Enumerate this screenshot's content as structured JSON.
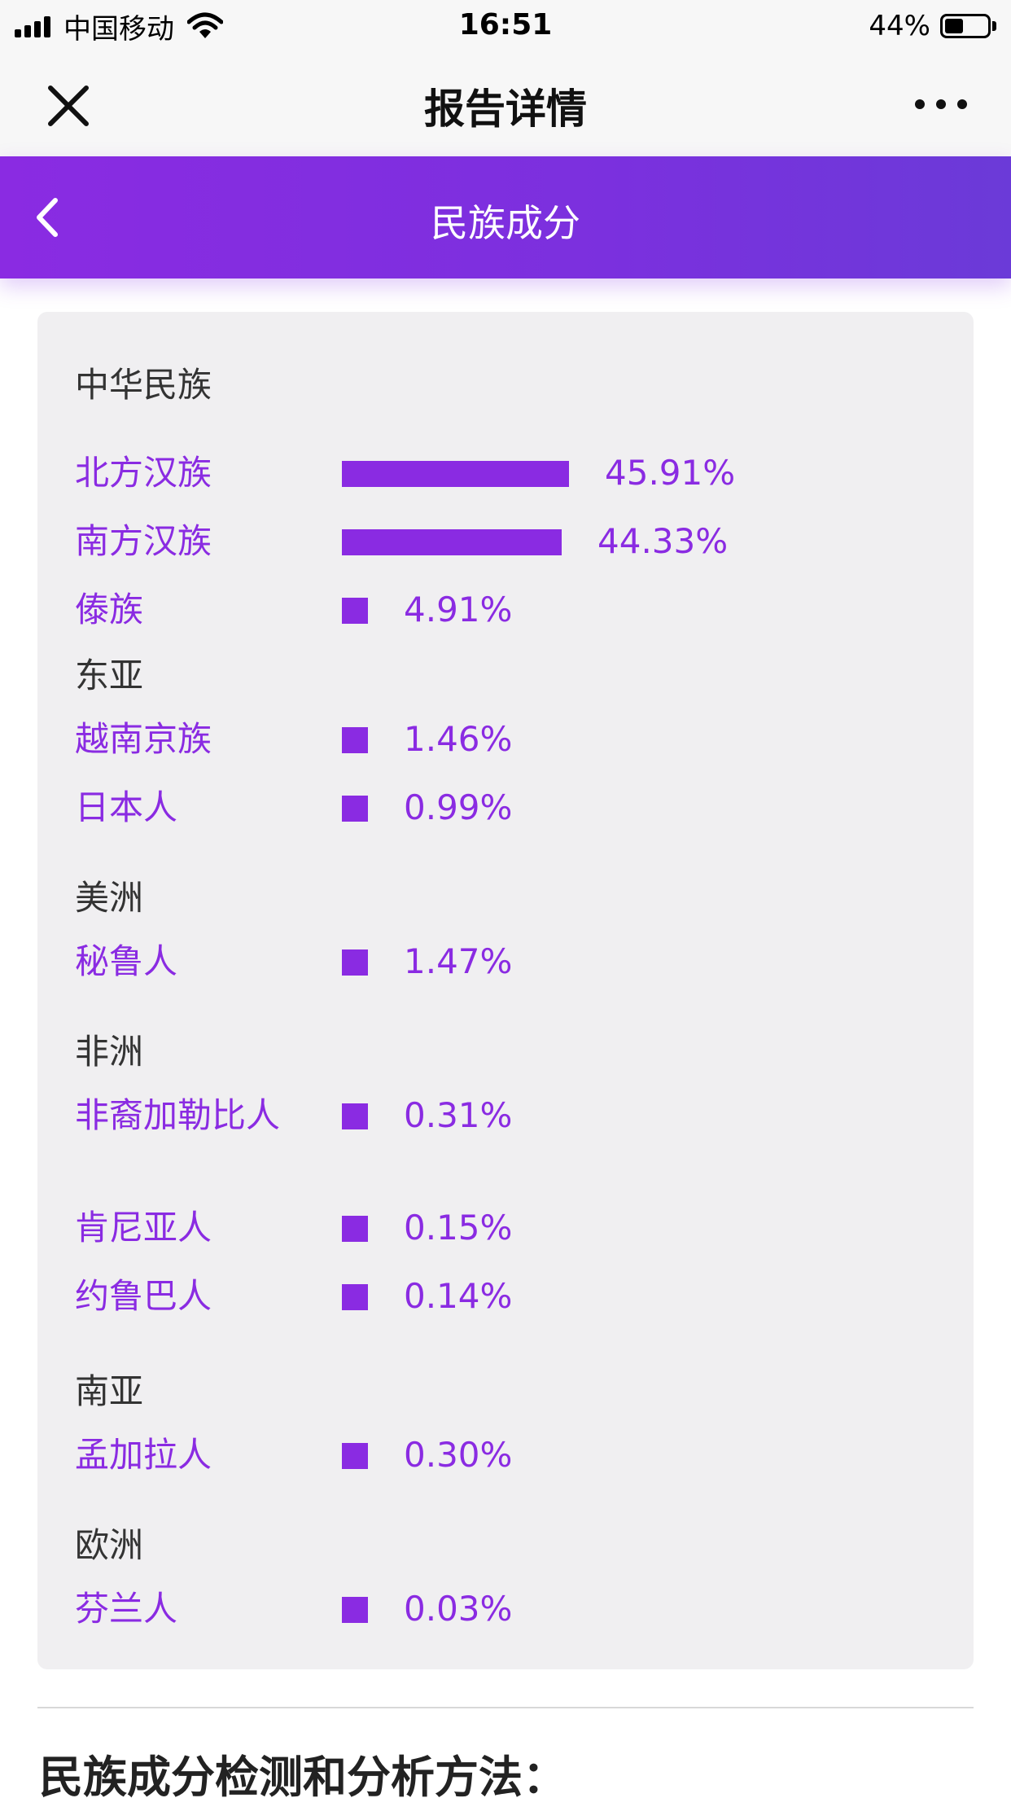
{
  "status_bar": {
    "carrier": "中国移动",
    "time": "16:51",
    "battery": "44%",
    "battery_level": 0.44
  },
  "nav": {
    "title": "报告详情"
  },
  "header": {
    "title": "民族成分"
  },
  "groups": [
    {
      "title": "中华民族",
      "items": [
        {
          "name": "北方汉族",
          "pct": "45.91%",
          "value": 45.91
        },
        {
          "name": "南方汉族",
          "pct": "44.33%",
          "value": 44.33
        },
        {
          "name": "傣族",
          "pct": "4.91%",
          "value": 4.91
        }
      ]
    },
    {
      "title": "东亚",
      "items": [
        {
          "name": "越南京族",
          "pct": "1.46%",
          "value": 1.46
        },
        {
          "name": "日本人",
          "pct": "0.99%",
          "value": 0.99
        }
      ]
    },
    {
      "title": "美洲",
      "items": [
        {
          "name": "秘鲁人",
          "pct": "1.47%",
          "value": 1.47
        }
      ]
    },
    {
      "title": "非洲",
      "items": [
        {
          "name": "非裔加勒比人",
          "pct": "0.31%",
          "value": 0.31
        },
        {
          "name": "肯尼亚人",
          "pct": "0.15%",
          "value": 0.15
        },
        {
          "name": "约鲁巴人",
          "pct": "0.14%",
          "value": 0.14
        }
      ]
    },
    {
      "title": "南亚",
      "items": [
        {
          "name": "孟加拉人",
          "pct": "0.30%",
          "value": 0.3
        }
      ]
    },
    {
      "title": "欧洲",
      "items": [
        {
          "name": "芬兰人",
          "pct": "0.03%",
          "value": 0.03
        }
      ]
    }
  ],
  "section_heading": "民族成分检测和分析方法：",
  "colors": {
    "accent": "#8a2be2",
    "header_gradient_end": "#6b3ad8",
    "card_bg": "#f0eff1",
    "group_title": "#333333"
  },
  "icons": {
    "close": "close-icon",
    "more": "more-icon",
    "back": "chevron-left-icon",
    "wifi": "wifi-icon",
    "battery": "battery-icon",
    "signal": "signal-icon"
  }
}
